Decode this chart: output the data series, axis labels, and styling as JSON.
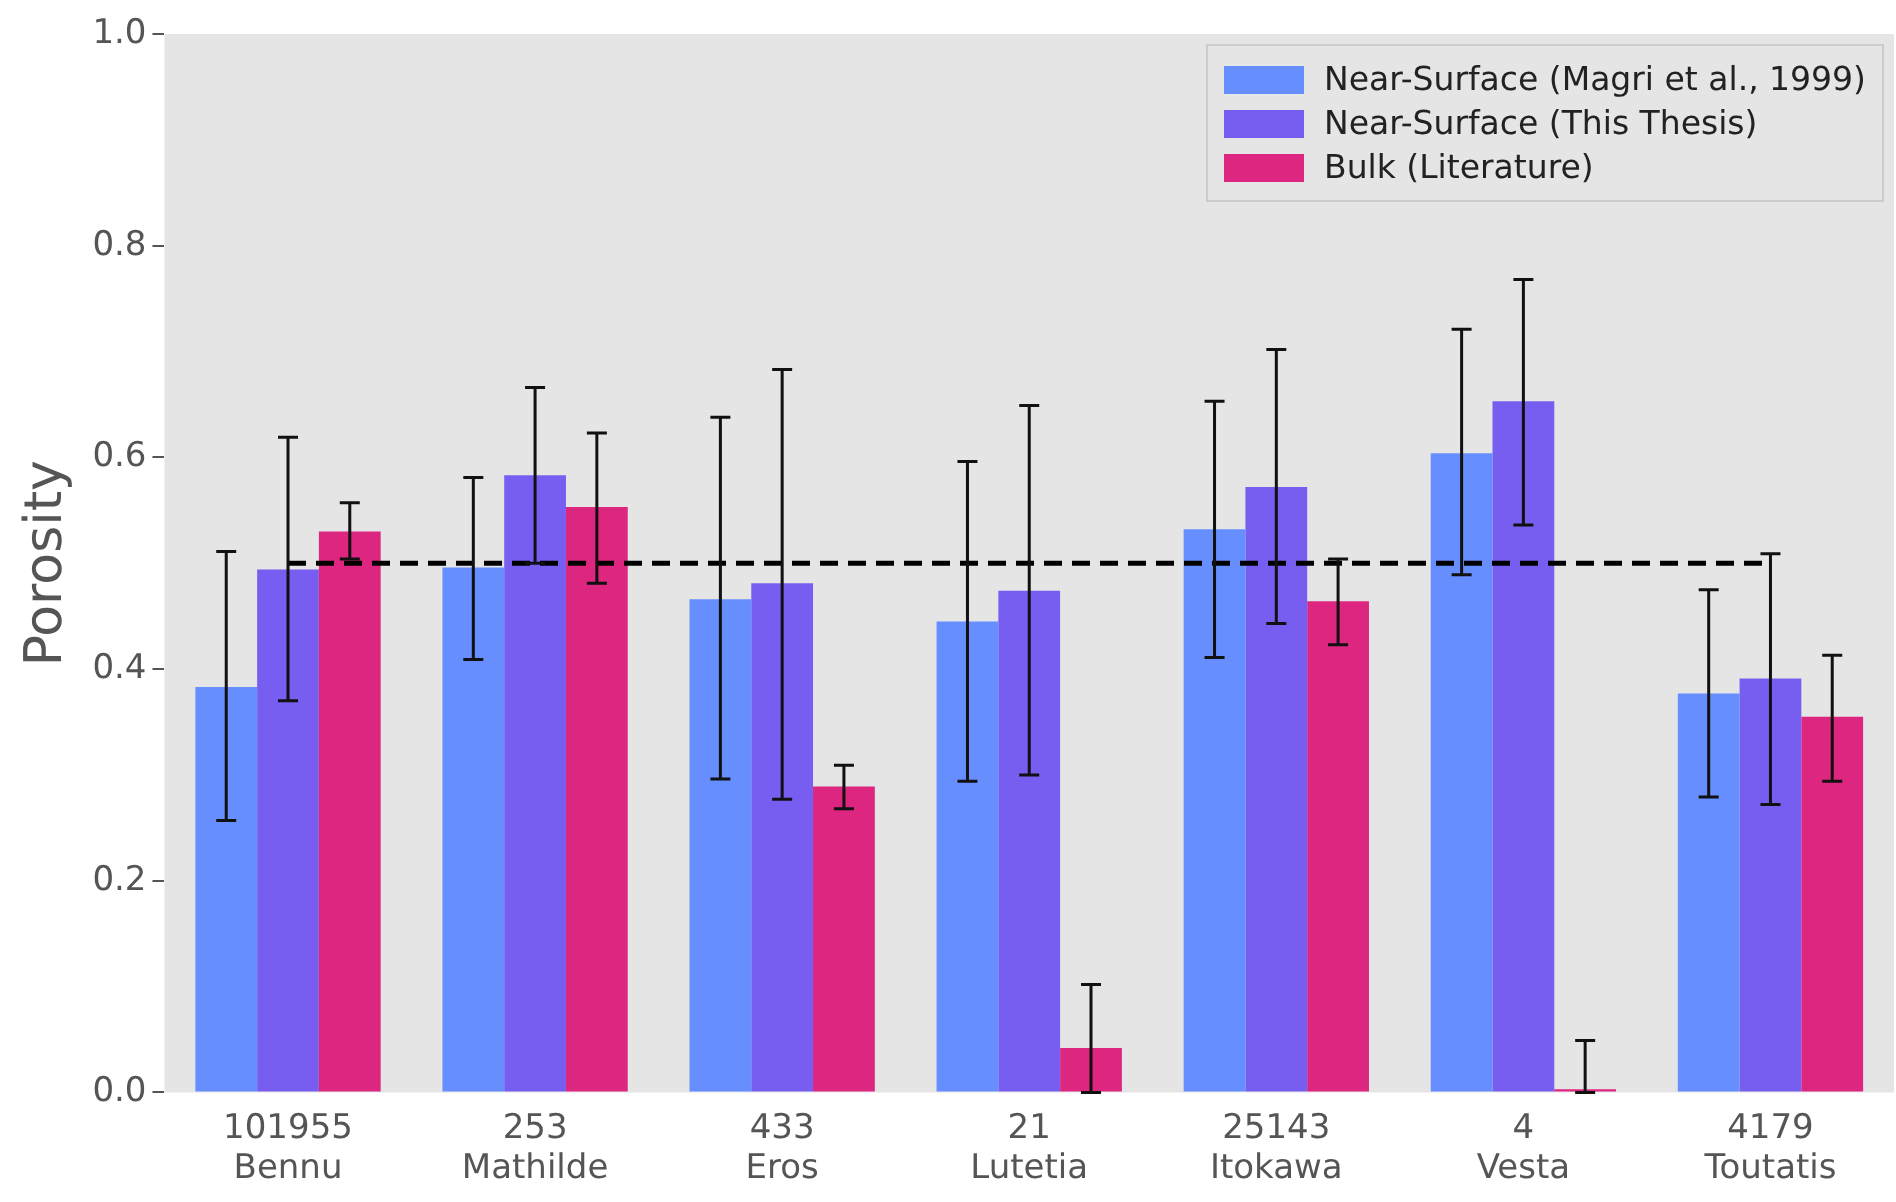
{
  "chart_data": {
    "type": "bar",
    "ylabel": "Porosity",
    "categories": [
      "101955\nBennu",
      "253\nMathilde",
      "433\nEros",
      "21\nLutetia",
      "25143\nItokawa",
      "4\nVesta",
      "4179\nToutatis"
    ],
    "series": [
      {
        "name": "Near-Surface (Magri et al., 1999)",
        "color": "#668eff",
        "values": [
          0.383,
          0.496,
          0.466,
          0.445,
          0.532,
          0.604,
          0.377
        ],
        "errors": [
          [
            0.257,
            0.511
          ],
          [
            0.409,
            0.581
          ],
          [
            0.296,
            0.638
          ],
          [
            0.294,
            0.596
          ],
          [
            0.411,
            0.653
          ],
          [
            0.489,
            0.721
          ],
          [
            0.279,
            0.475
          ]
        ]
      },
      {
        "name": "Near-Surface (This Thesis)",
        "color": "#785ef0",
        "values": [
          0.494,
          0.583,
          0.481,
          0.474,
          0.572,
          0.653,
          0.391
        ],
        "errors": [
          [
            0.37,
            0.619
          ],
          [
            0.5,
            0.666
          ],
          [
            0.277,
            0.683
          ],
          [
            0.3,
            0.649
          ],
          [
            0.443,
            0.702
          ],
          [
            0.536,
            0.768
          ],
          [
            0.272,
            0.509
          ]
        ]
      },
      {
        "name": "Bulk (Literature)",
        "color": "#dc267f",
        "values": [
          0.53,
          0.553,
          0.289,
          0.042,
          0.464,
          0.003,
          0.355
        ],
        "errors": [
          [
            0.504,
            0.557
          ],
          [
            0.481,
            0.623
          ],
          [
            0.268,
            0.309
          ],
          [
            0,
            0.102
          ],
          [
            0.423,
            0.504
          ],
          [
            0,
            0.049
          ],
          [
            0.294,
            0.413
          ]
        ]
      }
    ],
    "ylim": [
      0,
      1
    ],
    "yticks": [
      {
        "value": 0,
        "label": "0.0"
      },
      {
        "value": 0.2,
        "label": "0.2"
      },
      {
        "value": 0.4,
        "label": "0.4"
      },
      {
        "value": 0.6,
        "label": "0.6"
      },
      {
        "value": 0.8,
        "label": "0.8"
      },
      {
        "value": 1,
        "label": "1.0"
      }
    ],
    "ref_lines": [
      {
        "axis": "y",
        "value": 0.5,
        "color": "#000000",
        "line_style": "dashed"
      }
    ],
    "grid": false,
    "legend": "top right"
  }
}
